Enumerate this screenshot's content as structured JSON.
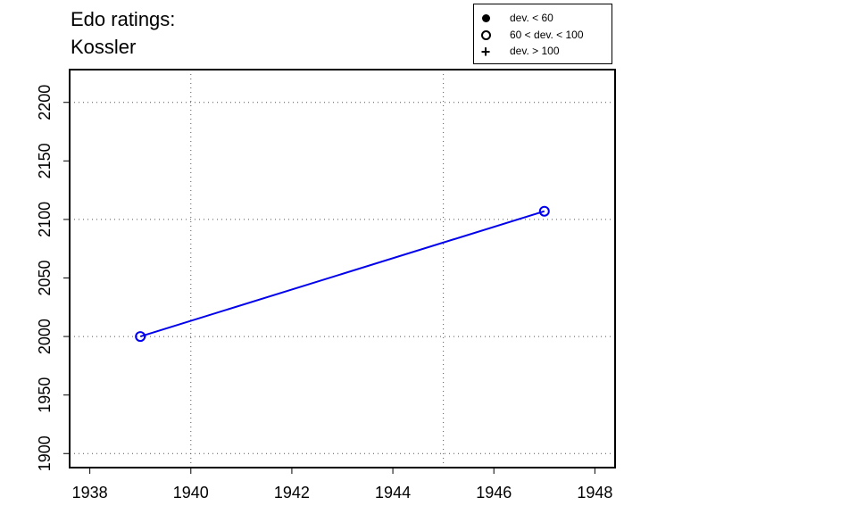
{
  "chart_data": {
    "type": "line",
    "title_lines": [
      "Edo ratings:",
      "Kossler"
    ],
    "xlabel": "",
    "ylabel": "",
    "xlim": [
      1937.6,
      1948.4
    ],
    "ylim": [
      1888,
      2228
    ],
    "x_ticks": [
      1938,
      1940,
      1942,
      1944,
      1946,
      1948
    ],
    "y_ticks": [
      1900,
      1950,
      2000,
      2050,
      2100,
      2150,
      2200
    ],
    "x_grid": [
      1940,
      1945
    ],
    "y_grid": [
      1900,
      2000,
      2100,
      2200
    ],
    "grid": true,
    "series": [
      {
        "x": [
          1939,
          1947
        ],
        "values": [
          2000,
          2107
        ],
        "markers": [
          "open-circle",
          "open-circle"
        ],
        "color": "#0000ee"
      }
    ],
    "legend": {
      "placement": "top-right",
      "entries": [
        {
          "symbol": "filled-circle",
          "label": "dev. < 60"
        },
        {
          "symbol": "open-circle",
          "label": "60 < dev. < 100"
        },
        {
          "symbol": "plus",
          "label": "dev. > 100"
        }
      ]
    }
  }
}
